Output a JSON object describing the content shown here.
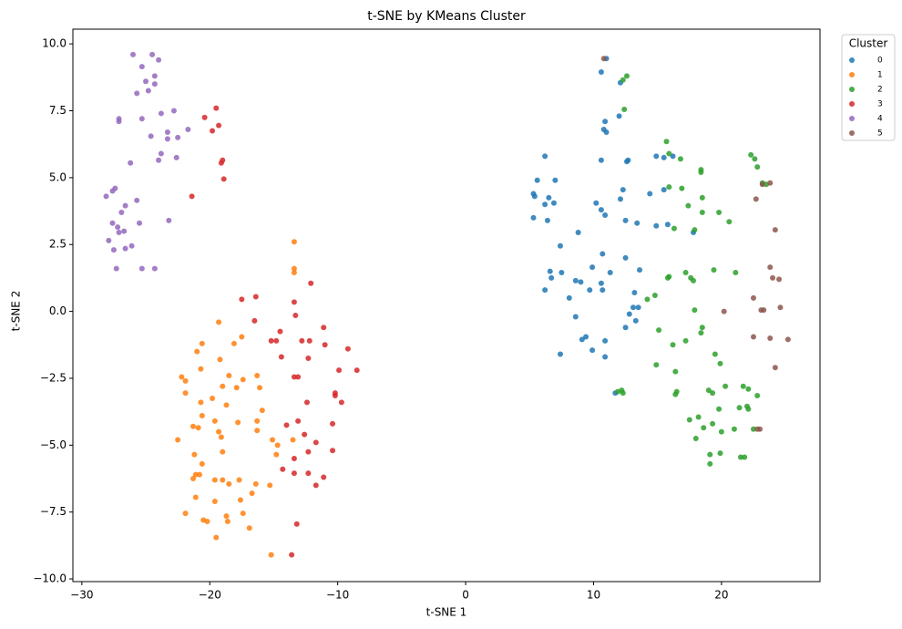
{
  "chart_data": {
    "type": "scatter",
    "title": "t-SNE by KMeans Cluster",
    "x_label": "t-SNE 1",
    "y_label": "t-SNE 2",
    "legend_title": "Cluster",
    "legend_position": "outside-upper-right",
    "grid": false,
    "xlim": [
      -30.7,
      27.7
    ],
    "ylim": [
      -10.1,
      10.55
    ],
    "xticks": [
      {
        "value": -30,
        "label": "−30"
      },
      {
        "value": -20,
        "label": "−20"
      },
      {
        "value": -10,
        "label": "−10"
      },
      0,
      10,
      20
    ],
    "yticks": [
      {
        "value": -10,
        "label": "−10.0"
      },
      {
        "value": -7.5,
        "label": "−7.5"
      },
      {
        "value": -5,
        "label": "−5.0"
      },
      {
        "value": -2.5,
        "label": "−2.5"
      },
      {
        "value": 0,
        "label": "0.0"
      },
      {
        "value": 2.5,
        "label": "2.5"
      },
      {
        "value": 5,
        "label": "5.0"
      },
      {
        "value": 7.5,
        "label": "7.5"
      },
      {
        "value": 10,
        "label": "10.0"
      }
    ],
    "series": [
      {
        "name": "0",
        "color": "#1f77b4",
        "x": [
          11,
          10.6,
          12.1,
          12,
          10.9,
          10.8,
          11,
          6.2,
          10.6,
          12.7,
          12.6,
          14.9,
          15.5,
          16.2,
          5.6,
          7,
          5.3,
          5.4,
          12.3,
          14.4,
          15.5,
          6.5,
          6.9,
          6.2,
          10.2,
          12.1,
          10.6,
          10.9,
          5.3,
          6.4,
          12.5,
          13.4,
          14.9,
          15.8,
          17.8,
          8.8,
          7.4,
          12.5,
          10.7,
          9.9,
          13.6,
          6.6,
          7.5,
          11.3,
          6.7,
          8.6,
          9,
          10.6,
          6.2,
          10.7,
          9.7,
          13.2,
          8.1,
          13.1,
          13.5,
          12.8,
          8.6,
          13.3,
          12.5,
          9.4,
          9.1,
          10.9,
          9.9,
          7.4,
          10.9,
          11.7
        ],
        "y": [
          9.45,
          8.95,
          8.55,
          7.3,
          7.1,
          6.8,
          6.7,
          5.8,
          5.65,
          5.65,
          5.6,
          5.8,
          5.75,
          5.8,
          4.9,
          4.9,
          4.4,
          4.3,
          4.55,
          4.4,
          4.55,
          4.25,
          4.05,
          4.0,
          4.05,
          4.2,
          3.8,
          3.6,
          3.5,
          3.4,
          3.4,
          3.3,
          3.2,
          3.25,
          2.95,
          2.95,
          2.45,
          2.0,
          2.15,
          1.65,
          1.55,
          1.5,
          1.45,
          1.45,
          1.25,
          1.15,
          1.1,
          1.05,
          0.8,
          0.8,
          0.8,
          0.7,
          0.5,
          0.15,
          0.15,
          -0.1,
          -0.2,
          -0.35,
          -0.6,
          -0.95,
          -1.05,
          -1.1,
          -1.45,
          -1.6,
          -1.7,
          -3.05
        ]
      },
      {
        "name": "1",
        "color": "#ff7f0e",
        "x": [
          -13.4,
          -13.4,
          -13.4,
          -19.3,
          -20.6,
          -17.5,
          -18.1,
          -21,
          -19.2,
          -20.7,
          -18.5,
          -16.3,
          -22.2,
          -21.9,
          -17.4,
          -19,
          -17.9,
          -16.1,
          -21.9,
          -19.8,
          -20.7,
          -18.7,
          -15.9,
          -20.6,
          -16.3,
          -21.3,
          -20.9,
          -17.8,
          -19.6,
          -19.3,
          -16.3,
          -19.1,
          -22.5,
          -15.1,
          -13.5,
          -14.7,
          -21.2,
          -19,
          -14.8,
          -20.6,
          -21.1,
          -20.8,
          -21.3,
          -19.6,
          -19,
          -17.7,
          -18.5,
          -16.4,
          -15.3,
          -16.7,
          -21.1,
          -17.6,
          -19.6,
          -21.9,
          -17.4,
          -18.7,
          -20.5,
          -20.2,
          -18.6,
          -16.9,
          -19.5,
          -15.2
        ],
        "y": [
          2.6,
          1.6,
          1.45,
          -0.4,
          -1.2,
          -0.95,
          -1.2,
          -1.5,
          -1.8,
          -2.15,
          -2.4,
          -2.4,
          -2.45,
          -2.6,
          -2.55,
          -2.8,
          -2.85,
          -2.85,
          -3.05,
          -3.25,
          -3.4,
          -3.5,
          -3.7,
          -3.9,
          -4.1,
          -4.3,
          -4.35,
          -4.15,
          -4.1,
          -4.5,
          -4.45,
          -4.7,
          -4.8,
          -4.8,
          -4.8,
          -5.0,
          -5.35,
          -5.25,
          -5.35,
          -5.7,
          -6.1,
          -6.1,
          -6.25,
          -6.3,
          -6.3,
          -6.3,
          -6.45,
          -6.45,
          -6.5,
          -6.8,
          -6.95,
          -7.05,
          -7.1,
          -7.55,
          -7.55,
          -7.65,
          -7.8,
          -7.85,
          -7.85,
          -8.1,
          -8.45,
          -9.1
        ]
      },
      {
        "name": "2",
        "color": "#2ca02c",
        "x": [
          12.6,
          12.3,
          12.4,
          15.7,
          15.9,
          16.8,
          22.3,
          22.6,
          22.8,
          23.2,
          23.5,
          18.4,
          18.4,
          15.9,
          16.9,
          18.5,
          17.4,
          18.5,
          19.8,
          20.6,
          16.3,
          17.9,
          19.4,
          21.1,
          17.2,
          15.9,
          15.8,
          17.6,
          17.8,
          14.8,
          14.2,
          17.9,
          18.5,
          18.4,
          15.1,
          17.2,
          16.2,
          19.5,
          14.9,
          19.9,
          16.4,
          12.2,
          11.9,
          12.3,
          16.5,
          16.4,
          19.0,
          19.3,
          20.3,
          21.7,
          22.1,
          22.8,
          19.8,
          21.4,
          22,
          22.1,
          17.5,
          18.2,
          19.3,
          20.0,
          18.6,
          21,
          22.5,
          18.0,
          19.1,
          19.9,
          21.5,
          21.8,
          19.1
        ],
        "y": [
          8.8,
          8.65,
          7.55,
          6.35,
          5.9,
          5.7,
          5.85,
          5.7,
          5.4,
          4.8,
          4.75,
          5.3,
          5.2,
          4.65,
          4.6,
          4.25,
          3.95,
          3.7,
          3.7,
          3.35,
          3.1,
          3.05,
          1.55,
          1.45,
          1.45,
          1.3,
          1.25,
          1.25,
          1.15,
          0.6,
          0.45,
          0.05,
          -0.6,
          -0.8,
          -0.7,
          -1.1,
          -1.25,
          -1.6,
          -2.0,
          -1.95,
          -2.25,
          -2.95,
          -3.0,
          -3.05,
          -3.0,
          -3.1,
          -2.95,
          -3.05,
          -2.8,
          -2.8,
          -2.9,
          -3.15,
          -3.65,
          -3.6,
          -3.55,
          -3.65,
          -4.05,
          -3.95,
          -4.2,
          -4.5,
          -4.35,
          -4.4,
          -4.4,
          -4.75,
          -5.35,
          -5.3,
          -5.45,
          -5.45,
          -5.7
        ]
      },
      {
        "name": "3",
        "color": "#d62728",
        "x": [
          -19.5,
          -20.4,
          -19.3,
          -19.8,
          -19,
          -19.1,
          -18.9,
          -21.4,
          -12.1,
          -16.4,
          -17.5,
          -13.4,
          -13.3,
          -16.5,
          -11.1,
          -14.5,
          -15.2,
          -14.8,
          -12.8,
          -12.2,
          -11,
          -9.2,
          -14.4,
          -12.3,
          -8.5,
          -9.9,
          -13.4,
          -13.1,
          -10.2,
          -10.2,
          -9.7,
          -12.4,
          -13.1,
          -10.4,
          -14,
          -12.6,
          -11.7,
          -10.4,
          -12.3,
          -13.4,
          -14.3,
          -13.4,
          -12.3,
          -11.1,
          -11.7,
          -13.2,
          -13.6
        ],
        "y": [
          7.6,
          7.25,
          6.95,
          6.75,
          5.65,
          5.55,
          4.95,
          4.3,
          1.05,
          0.55,
          0.45,
          0.35,
          -0.15,
          -0.35,
          -0.6,
          -0.75,
          -1.1,
          -1.1,
          -1.1,
          -1.1,
          -1.25,
          -1.4,
          -1.7,
          -1.75,
          -2.2,
          -2.2,
          -2.45,
          -2.45,
          -3.05,
          -3.15,
          -3.4,
          -3.4,
          -4.1,
          -4.2,
          -4.25,
          -4.6,
          -4.9,
          -5.2,
          -5.25,
          -5.5,
          -5.9,
          -6.05,
          -6.05,
          -6.2,
          -6.5,
          -7.95,
          -9.1
        ]
      },
      {
        "name": "4",
        "color": "#9467bd",
        "x": [
          -26,
          -24.5,
          -24,
          -25.3,
          -24.3,
          -25,
          -24.3,
          -24.8,
          -25.7,
          -22.8,
          -23.8,
          -27.1,
          -27.1,
          -25.3,
          -21.7,
          -23.3,
          -22.5,
          -23.3,
          -24.6,
          -23.8,
          -24,
          -22.6,
          -26.2,
          -27.4,
          -27.6,
          -28.1,
          -25.7,
          -26.6,
          -26.9,
          -27.6,
          -25.5,
          -23.2,
          -27.2,
          -26.7,
          -27.1,
          -27.9,
          -26.1,
          -27.5,
          -26.6,
          -27.3,
          -25.3,
          -24.3
        ],
        "y": [
          9.6,
          9.6,
          9.4,
          9.15,
          8.8,
          8.6,
          8.5,
          8.25,
          8.15,
          7.5,
          7.4,
          7.2,
          7.1,
          7.2,
          6.8,
          6.7,
          6.5,
          6.45,
          6.55,
          5.9,
          5.65,
          5.75,
          5.55,
          4.6,
          4.5,
          4.3,
          4.15,
          3.95,
          3.7,
          3.3,
          3.3,
          3.4,
          3.15,
          3,
          2.95,
          2.65,
          2.45,
          2.3,
          2.35,
          1.6,
          1.6,
          1.6
        ]
      },
      {
        "name": "5",
        "color": "#8c564b",
        "x": [
          10.8,
          22.7,
          23.8,
          23.2,
          24.2,
          23.8,
          24,
          24.5,
          22.5,
          24.6,
          23.1,
          23.3,
          20.2,
          22.5,
          23.8,
          25.2,
          24.2,
          23,
          22.8
        ],
        "y": [
          9.45,
          4.2,
          4.8,
          4.75,
          3.05,
          1.65,
          1.25,
          1.2,
          0.5,
          0.15,
          0.05,
          0.05,
          0,
          -0.95,
          -1.0,
          -1.05,
          -2.1,
          -4.4,
          -4.4
        ]
      }
    ]
  }
}
